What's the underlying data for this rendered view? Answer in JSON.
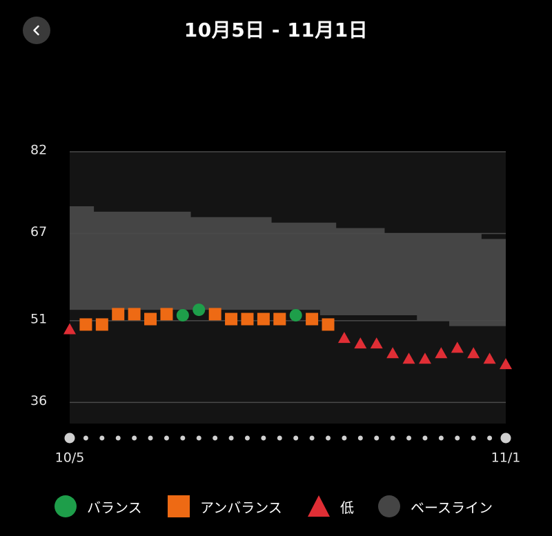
{
  "header": {
    "title": "10月5日 - 11月1日",
    "back_icon": "chevron-left-icon"
  },
  "colors": {
    "balanced": "#1e9e4a",
    "unbalanced": "#ee6a14",
    "low": "#e02e35",
    "baseline": "#454545",
    "below_band": "#141414",
    "gridline": "#4a4a4a",
    "axis_text": "#e6e6e6",
    "dot": "#d0d0d0"
  },
  "legend": {
    "items": [
      {
        "key": "balanced",
        "label": "バランス",
        "shape": "circle"
      },
      {
        "key": "unbalanced",
        "label": "アンバランス",
        "shape": "square"
      },
      {
        "key": "low",
        "label": "低",
        "shape": "triangle"
      },
      {
        "key": "baseline",
        "label": "ベースライン",
        "shape": "circle"
      }
    ]
  },
  "chart_data": {
    "type": "scatter",
    "x_start_label": "10/5",
    "x_end_label": "11/1",
    "y_ticks": [
      82,
      67,
      51,
      36
    ],
    "ylim": [
      31,
      82
    ],
    "grid": true,
    "legend_position": "bottom",
    "days": 28,
    "values": [
      49.4,
      50.3,
      50.3,
      52.2,
      52.2,
      51.3,
      52.2,
      52.0,
      53.0,
      52.2,
      51.3,
      51.3,
      51.3,
      51.3,
      52.0,
      51.3,
      50.3,
      47.8,
      46.8,
      46.8,
      45.0,
      44.0,
      44.0,
      45.0,
      46.0,
      45.0,
      44.0,
      43.0
    ],
    "status": [
      "low",
      "unbalanced",
      "unbalanced",
      "unbalanced",
      "unbalanced",
      "unbalanced",
      "unbalanced",
      "balanced",
      "balanced",
      "unbalanced",
      "unbalanced",
      "unbalanced",
      "unbalanced",
      "unbalanced",
      "balanced",
      "unbalanced",
      "unbalanced",
      "low",
      "low",
      "low",
      "low",
      "low",
      "low",
      "low",
      "low",
      "low",
      "low",
      "low"
    ],
    "baseline_upper": [
      72.0,
      72.0,
      71.0,
      71.0,
      71.0,
      71.0,
      71.0,
      71.0,
      70.0,
      70.0,
      70.0,
      70.0,
      70.0,
      69.0,
      69.0,
      69.0,
      69.0,
      68.0,
      68.0,
      68.0,
      67.0,
      67.0,
      67.0,
      67.0,
      67.0,
      67.0,
      66.0,
      66.0
    ],
    "baseline_lower": [
      53.0,
      53.0,
      53.0,
      53.0,
      53.0,
      53.0,
      53.0,
      53.0,
      53.0,
      53.0,
      53.0,
      53.0,
      53.0,
      53.0,
      53.0,
      53.0,
      52.0,
      52.0,
      52.0,
      52.0,
      52.0,
      52.0,
      51.0,
      51.0,
      50.0,
      50.0,
      50.0,
      50.0
    ]
  }
}
